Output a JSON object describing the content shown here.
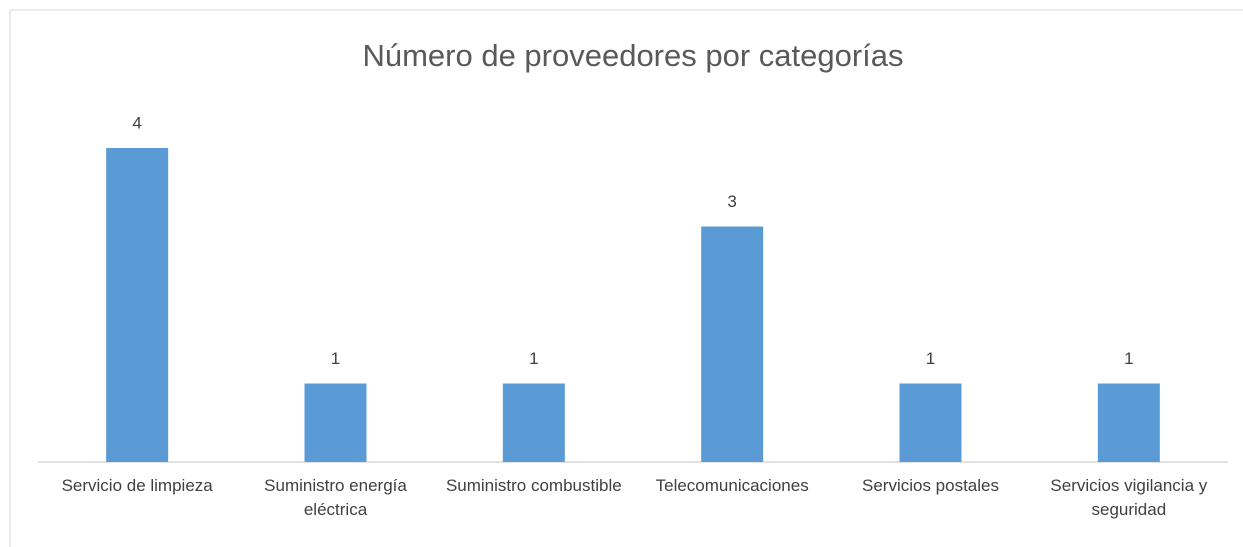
{
  "chart_data": {
    "type": "bar",
    "title": "Número de proveedores por categorías",
    "categories": [
      "Servicio de limpieza",
      "Suministro energía eléctrica",
      "Suministro combustible",
      "Telecomunicaciones",
      "Servicios postales",
      "Servicios vigilancia y seguridad"
    ],
    "values": [
      4,
      1,
      1,
      3,
      1,
      1
    ],
    "color": "#5b9bd5",
    "data_labels": true
  }
}
